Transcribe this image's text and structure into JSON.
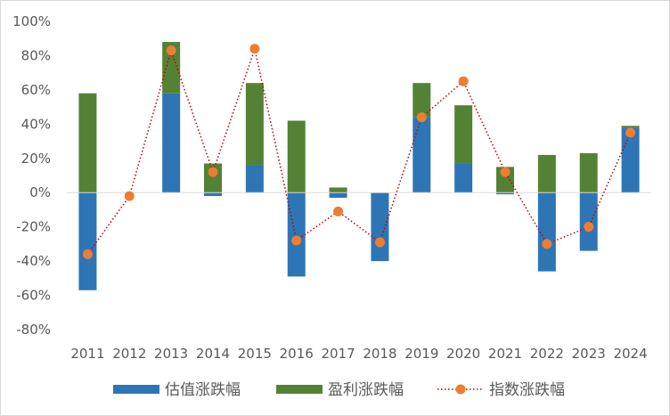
{
  "chart_data": {
    "type": "bar",
    "title": "",
    "xlabel": "",
    "ylabel": "",
    "stacked": true,
    "categories": [
      "2011",
      "2012",
      "2013",
      "2014",
      "2015",
      "2016",
      "2017",
      "2018",
      "2019",
      "2020",
      "2021",
      "2022",
      "2023",
      "2024"
    ],
    "series": [
      {
        "name": "估值涨跌幅",
        "type": "bar",
        "color": "#2e75b6",
        "values": [
          -57,
          0,
          58,
          -2,
          16,
          -49,
          -3,
          -40,
          44,
          17,
          -1,
          -46,
          -34,
          38
        ]
      },
      {
        "name": "盈利涨跌幅",
        "type": "bar",
        "color": "#548235",
        "values": [
          58,
          0,
          30,
          17,
          48,
          42,
          3,
          0,
          20,
          34,
          15,
          22,
          23,
          1
        ]
      },
      {
        "name": "指数涨跌幅",
        "type": "line",
        "style": "dotted-line-with-markers",
        "color": "#c00000",
        "marker_color": "#ed7d31",
        "values": [
          -36,
          -2,
          83,
          12,
          84,
          -28,
          -11,
          -29,
          44,
          65,
          12,
          -30,
          -20,
          35
        ]
      }
    ],
    "ylim": [
      -80,
      100
    ],
    "yticks": [
      -80,
      -60,
      -40,
      -20,
      0,
      20,
      40,
      60,
      80,
      100
    ],
    "ytick_format": "percent",
    "grid": false,
    "legend": "bottom"
  }
}
